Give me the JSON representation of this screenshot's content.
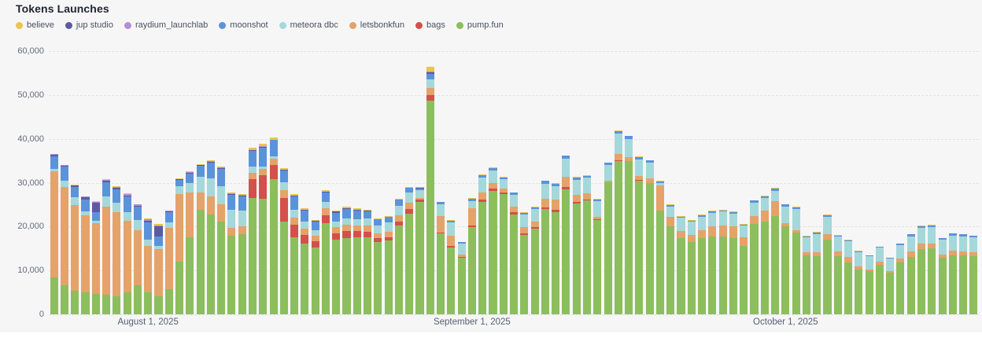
{
  "page": {
    "title": "Tokens Launches"
  },
  "chart_data": {
    "type": "bar",
    "stacked": true,
    "title": "Tokens Launches",
    "grid": "horizontal-dashed",
    "legend_position": "top-left",
    "ylim": [
      0,
      60000
    ],
    "y_ticks": [
      {
        "label": "60,000",
        "value": 60000
      },
      {
        "label": "50,000",
        "value": 50000
      },
      {
        "label": "40,000",
        "value": 40000
      },
      {
        "label": "30,000",
        "value": 30000
      },
      {
        "label": "20,000",
        "value": 20000
      },
      {
        "label": "10,000",
        "value": 10000
      },
      {
        "label": "0",
        "value": 0
      }
    ],
    "x_tick_labels": [
      {
        "label": "August 1, 2025",
        "bar_index": 9
      },
      {
        "label": "September 1, 2025",
        "bar_index": 40
      },
      {
        "label": "October 1, 2025",
        "bar_index": 70
      }
    ],
    "x": [
      "2025-07-23",
      "2025-07-24",
      "2025-07-25",
      "2025-07-26",
      "2025-07-27",
      "2025-07-28",
      "2025-07-29",
      "2025-07-30",
      "2025-07-31",
      "2025-08-01",
      "2025-08-02",
      "2025-08-03",
      "2025-08-04",
      "2025-08-05",
      "2025-08-06",
      "2025-08-07",
      "2025-08-08",
      "2025-08-09",
      "2025-08-10",
      "2025-08-11",
      "2025-08-12",
      "2025-08-13",
      "2025-08-14",
      "2025-08-15",
      "2025-08-16",
      "2025-08-17",
      "2025-08-18",
      "2025-08-19",
      "2025-08-20",
      "2025-08-21",
      "2025-08-22",
      "2025-08-23",
      "2025-08-24",
      "2025-08-25",
      "2025-08-26",
      "2025-08-27",
      "2025-08-28",
      "2025-08-29",
      "2025-08-30",
      "2025-08-31",
      "2025-09-01",
      "2025-09-02",
      "2025-09-03",
      "2025-09-04",
      "2025-09-05",
      "2025-09-06",
      "2025-09-07",
      "2025-09-08",
      "2025-09-09",
      "2025-09-10",
      "2025-09-11",
      "2025-09-12",
      "2025-09-13",
      "2025-09-14",
      "2025-09-15",
      "2025-09-16",
      "2025-09-17",
      "2025-09-18",
      "2025-09-19",
      "2025-09-20",
      "2025-09-21",
      "2025-09-22",
      "2025-09-23",
      "2025-09-24",
      "2025-09-25",
      "2025-09-26",
      "2025-09-27",
      "2025-09-28",
      "2025-09-29",
      "2025-09-30",
      "2025-10-01",
      "2025-10-02",
      "2025-10-03",
      "2025-10-04",
      "2025-10-05",
      "2025-10-06",
      "2025-10-07",
      "2025-10-08",
      "2025-10-09",
      "2025-10-10",
      "2025-10-11",
      "2025-10-12",
      "2025-10-13",
      "2025-10-14",
      "2025-10-15",
      "2025-10-16",
      "2025-10-17",
      "2025-10-18",
      "2025-10-19"
    ],
    "stack_order_bottom_to_top": [
      "pump.fun",
      "bags",
      "letsbonkfun",
      "meteora dbc",
      "moonshot",
      "jup studio",
      "raydium_launchlab",
      "believe"
    ],
    "series": [
      {
        "name": "believe",
        "color": "#e9c54b",
        "values": [
          100,
          100,
          100,
          100,
          100,
          200,
          200,
          200,
          100,
          200,
          300,
          0,
          100,
          100,
          200,
          300,
          200,
          200,
          200,
          400,
          500,
          500,
          400,
          300,
          300,
          200,
          300,
          300,
          300,
          300,
          200,
          200,
          200,
          200,
          200,
          100,
          1000,
          0,
          100,
          0,
          100,
          100,
          100,
          50,
          100,
          100,
          100,
          100,
          100,
          100,
          100,
          100,
          100,
          100,
          100,
          100,
          100,
          100,
          100,
          100,
          100,
          100,
          100,
          100,
          100,
          100,
          100,
          100,
          100,
          200,
          100,
          100,
          100,
          100,
          100,
          100,
          100,
          100,
          50,
          50,
          50,
          50,
          100,
          100,
          100,
          100,
          100,
          100,
          100
        ]
      },
      {
        "name": "jup studio",
        "color": "#5e5aa0",
        "values": [
          400,
          200,
          200,
          500,
          2100,
          300,
          300,
          300,
          300,
          400,
          2300,
          200,
          200,
          200,
          100,
          200,
          200,
          200,
          100,
          100,
          200,
          0,
          100,
          200,
          200,
          200,
          200,
          200,
          200,
          300,
          200,
          0,
          0,
          0,
          100,
          100,
          400,
          0,
          0,
          0,
          0,
          0,
          0,
          0,
          0,
          0,
          0,
          0,
          0,
          0,
          0,
          0,
          0,
          0,
          0,
          0,
          0,
          0,
          0,
          0,
          0,
          0,
          0,
          0,
          0,
          0,
          0,
          0,
          0,
          0,
          0,
          0,
          0,
          0,
          0,
          0,
          0,
          0,
          0,
          0,
          0,
          0,
          0,
          0,
          0,
          0,
          0,
          0,
          0
        ]
      },
      {
        "name": "raydium_launchlab",
        "color": "#b48fd1",
        "values": [
          100,
          100,
          100,
          100,
          300,
          300,
          200,
          300,
          200,
          200,
          200,
          100,
          100,
          200,
          100,
          200,
          200,
          200,
          200,
          100,
          100,
          0,
          100,
          100,
          0,
          0,
          0,
          0,
          0,
          0,
          0,
          0,
          0,
          0,
          0,
          100,
          200,
          0,
          0,
          0,
          0,
          0,
          0,
          0,
          0,
          0,
          0,
          0,
          0,
          0,
          0,
          0,
          0,
          0,
          0,
          0,
          0,
          0,
          0,
          0,
          0,
          0,
          0,
          0,
          0,
          0,
          0,
          0,
          0,
          0,
          0,
          0,
          0,
          0,
          0,
          0,
          0,
          0,
          0,
          0,
          0,
          0,
          0,
          0,
          0,
          0,
          0,
          0,
          0
        ]
      },
      {
        "name": "moonshot",
        "color": "#5b93da",
        "values": [
          2900,
          3200,
          2400,
          2700,
          1900,
          3200,
          3000,
          3500,
          3000,
          4000,
          2200,
          2300,
          1400,
          2200,
          2600,
          3500,
          3900,
          3300,
          3300,
          3600,
          4300,
          3800,
          2700,
          3000,
          2600,
          2000,
          2200,
          2000,
          2100,
          1900,
          1700,
          1300,
          1200,
          1300,
          1100,
          400,
          1300,
          500,
          500,
          300,
          600,
          700,
          600,
          350,
          500,
          400,
          400,
          600,
          600,
          700,
          500,
          500,
          400,
          500,
          600,
          600,
          600,
          500,
          400,
          300,
          300,
          300,
          300,
          300,
          300,
          300,
          300,
          500,
          400,
          500,
          400,
          400,
          300,
          500,
          400,
          300,
          300,
          200,
          150,
          250,
          150,
          250,
          400,
          400,
          400,
          300,
          400,
          400,
          400
        ]
      },
      {
        "name": "meteora dbc",
        "color": "#a5d8da",
        "values": [
          500,
          1500,
          1800,
          1000,
          700,
          2400,
          2200,
          2000,
          2300,
          1400,
          700,
          1300,
          1800,
          2100,
          3500,
          4100,
          4100,
          4200,
          3600,
          1500,
          600,
          500,
          1800,
          1800,
          1500,
          1200,
          1500,
          1300,
          1400,
          1400,
          1500,
          1800,
          2200,
          2300,
          2200,
          1700,
          1900,
          2700,
          3000,
          2600,
          1600,
          3400,
          2800,
          2200,
          2600,
          3000,
          2900,
          3400,
          3000,
          4000,
          3400,
          3500,
          3500,
          3500,
          4600,
          4100,
          3800,
          3600,
          500,
          2400,
          3000,
          3000,
          3100,
          3100,
          3100,
          3000,
          2600,
          3000,
          2900,
          2300,
          3800,
          4800,
          3300,
          4000,
          4000,
          3300,
          3500,
          3200,
          3000,
          3200,
          2900,
          3100,
          3400,
          3600,
          3700,
          3300,
          3500,
          3500,
          3400
        ]
      },
      {
        "name": "letsbonkfun",
        "color": "#e5a269",
        "values": [
          24200,
          22400,
          19500,
          17500,
          16100,
          20100,
          19100,
          16300,
          12600,
          10600,
          10800,
          14000,
          15400,
          10200,
          3900,
          4200,
          4000,
          1800,
          1800,
          1400,
          1400,
          1500,
          1800,
          1500,
          1500,
          1200,
          1500,
          1400,
          1500,
          1400,
          1500,
          1200,
          1300,
          1400,
          1500,
          500,
          1700,
          3700,
          2300,
          600,
          3900,
          1600,
          1300,
          900,
          1400,
          1400,
          1300,
          2000,
          2400,
          2300,
          1600,
          1400,
          600,
          400,
          1500,
          1000,
          900,
          1100,
          5800,
          2200,
          1700,
          1600,
          1900,
          2300,
          2600,
          2700,
          2100,
          1800,
          2500,
          3400,
          800,
          600,
          800,
          1000,
          1200,
          1100,
          1200,
          700,
          500,
          700,
          300,
          800,
          1400,
          1300,
          1200,
          800,
          1000,
          900,
          900
        ]
      },
      {
        "name": "bags",
        "color": "#d4504c",
        "values": [
          0,
          0,
          0,
          0,
          0,
          0,
          0,
          0,
          0,
          0,
          0,
          0,
          0,
          0,
          0,
          0,
          0,
          0,
          0,
          4300,
          5400,
          3200,
          5400,
          3000,
          2000,
          1500,
          1800,
          1500,
          1600,
          1400,
          1200,
          800,
          700,
          900,
          1000,
          400,
          1200,
          300,
          300,
          100,
          400,
          500,
          600,
          400,
          400,
          300,
          300,
          400,
          500,
          600,
          400,
          300,
          200,
          0,
          200,
          0,
          200,
          0,
          0,
          0,
          0,
          0,
          0,
          0,
          0,
          0,
          0,
          0,
          0,
          0,
          0,
          0,
          0,
          0,
          0,
          0,
          0,
          0,
          0,
          0,
          0,
          0,
          0,
          0,
          0,
          0,
          0,
          0,
          0
        ]
      },
      {
        "name": "pump.fun",
        "color": "#8cbe5d",
        "values": [
          8400,
          6600,
          5400,
          5000,
          4600,
          4400,
          4200,
          5000,
          6600,
          5000,
          4100,
          5700,
          12000,
          17600,
          23900,
          22700,
          21100,
          17900,
          18200,
          26500,
          26300,
          30800,
          21100,
          17500,
          16100,
          15200,
          20800,
          17000,
          17400,
          17500,
          17600,
          16500,
          16800,
          20200,
          23000,
          25700,
          48700,
          18400,
          15300,
          12900,
          19900,
          25600,
          28100,
          27400,
          22800,
          18100,
          19500,
          24000,
          23300,
          28500,
          25300,
          25900,
          21500,
          30100,
          34900,
          34900,
          30400,
          29900,
          23600,
          20000,
          17300,
          16500,
          17300,
          17800,
          17700,
          17300,
          15500,
          20600,
          21100,
          22400,
          20000,
          18600,
          13400,
          13200,
          17000,
          13300,
          11900,
          10300,
          9800,
          11300,
          9500,
          11900,
          13000,
          14800,
          15000,
          12900,
          13500,
          13400,
          13200
        ]
      }
    ]
  }
}
